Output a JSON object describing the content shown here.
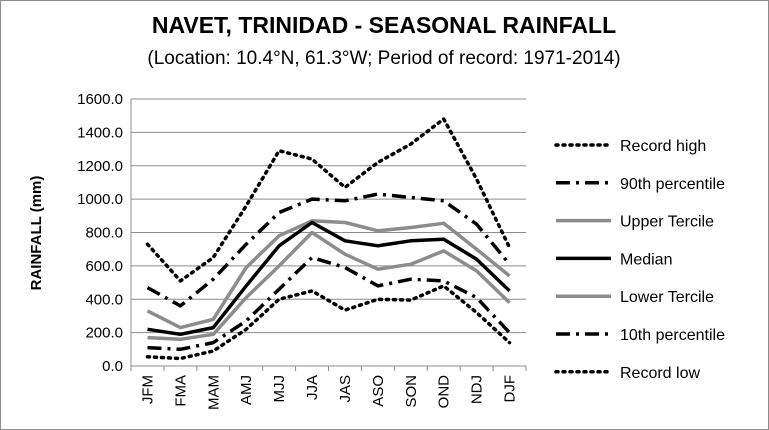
{
  "chart_data": {
    "type": "line",
    "title": "NAVET, TRINIDAD - SEASONAL RAINFALL",
    "subtitle": "(Location: 10.4°N, 61.3°W; Period of record: 1971-2014)",
    "ylabel": "RAINFALL (mm)",
    "xlabel": "",
    "ylim": [
      0,
      1600
    ],
    "yticks": [
      "0.0",
      "200.0",
      "400.0",
      "600.0",
      "800.0",
      "1000.0",
      "1200.0",
      "1400.0",
      "1600.0"
    ],
    "grid": true,
    "legend_position": "right",
    "categories": [
      "JFM",
      "FMA",
      "MAM",
      "AMJ",
      "MJJ",
      "JJA",
      "JAS",
      "ASO",
      "SON",
      "OND",
      "NDJ",
      "DJF"
    ],
    "series": [
      {
        "name": "Record high",
        "color": "#000000",
        "style": "dotted",
        "values": [
          730,
          510,
          650,
          960,
          1290,
          1240,
          1070,
          1220,
          1330,
          1480,
          1120,
          710
        ]
      },
      {
        "name": "90th percentile",
        "color": "#000000",
        "style": "dashdot",
        "values": [
          470,
          360,
          520,
          730,
          920,
          1000,
          990,
          1030,
          1010,
          990,
          850,
          610
        ]
      },
      {
        "name": "Upper Tercile",
        "color": "#8c8c8c",
        "style": "solid",
        "values": [
          330,
          230,
          280,
          590,
          780,
          870,
          860,
          810,
          830,
          855,
          700,
          540
        ]
      },
      {
        "name": "Median",
        "color": "#000000",
        "style": "solid",
        "values": [
          220,
          190,
          230,
          480,
          720,
          860,
          750,
          720,
          750,
          760,
          640,
          450
        ]
      },
      {
        "name": "Lower Tercile",
        "color": "#8c8c8c",
        "style": "solid",
        "values": [
          170,
          160,
          190,
          410,
          600,
          800,
          670,
          580,
          610,
          690,
          570,
          380
        ]
      },
      {
        "name": "10th percentile",
        "color": "#000000",
        "style": "dashdot",
        "values": [
          110,
          100,
          140,
          270,
          460,
          650,
          590,
          480,
          520,
          510,
          410,
          200
        ]
      },
      {
        "name": "Record low",
        "color": "#000000",
        "style": "dotted",
        "values": [
          55,
          45,
          90,
          220,
          400,
          450,
          335,
          400,
          395,
          480,
          320,
          140
        ]
      }
    ]
  }
}
